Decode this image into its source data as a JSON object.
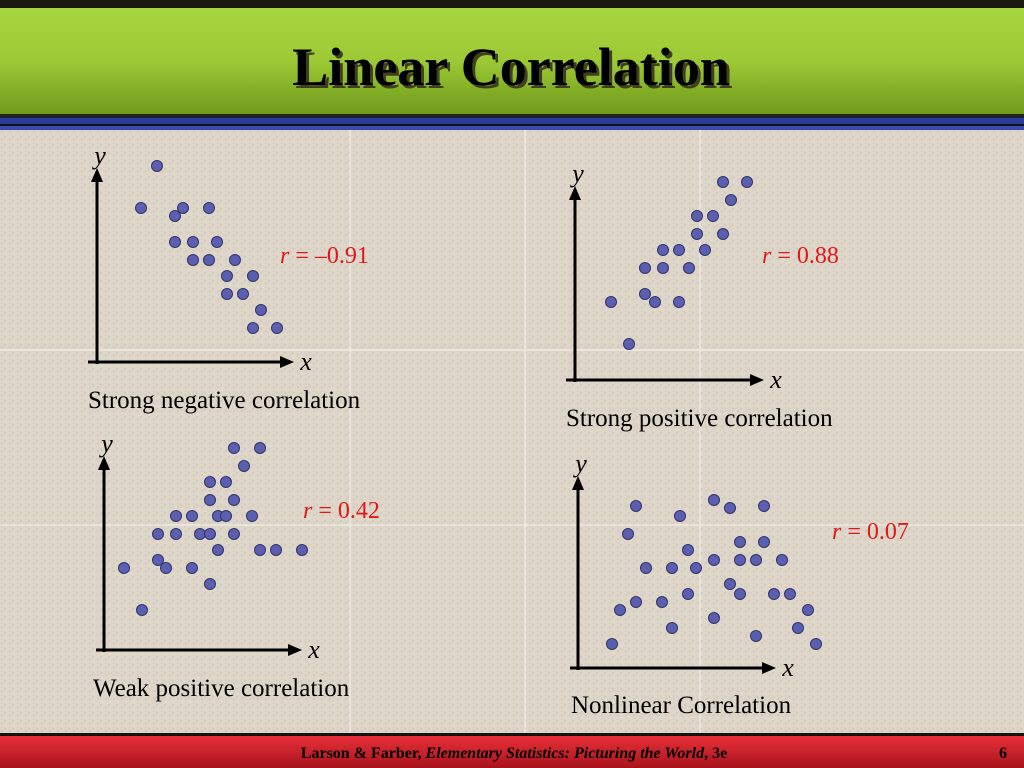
{
  "slide": {
    "title": "Linear Correlation",
    "footer": {
      "authors": "Larson & Farber, ",
      "book": "Elementary Statistics: Picturing the World",
      "edition": ", 3e",
      "page": "6"
    }
  },
  "chart_data": [
    {
      "type": "scatter",
      "caption": "Strong negative correlation",
      "x_label": "x",
      "y_label": "y",
      "annotation": {
        "symbol": "r",
        "text": " = –0.91"
      },
      "color": "#5b5fb0",
      "xlim": [
        0,
        12
      ],
      "ylim": [
        0,
        11
      ],
      "x": [
        3.0,
        2.2,
        3.9,
        4.3,
        5.6,
        3.9,
        4.8,
        6.0,
        4.8,
        5.6,
        6.9,
        6.5,
        7.8,
        6.5,
        7.3,
        8.2,
        7.8,
        9.0
      ],
      "values": [
        9.8,
        7.7,
        7.3,
        7.7,
        7.7,
        6.0,
        6.0,
        6.0,
        5.1,
        5.1,
        5.1,
        4.3,
        4.3,
        3.4,
        3.4,
        2.6,
        1.7,
        1.7
      ]
    },
    {
      "type": "scatter",
      "caption": "Strong positive correlation",
      "x_label": "x",
      "y_label": "y",
      "annotation": {
        "symbol": "r",
        "text": " = 0.88"
      },
      "color": "#5b5fb0",
      "xlim": [
        0,
        12
      ],
      "ylim": [
        0,
        11
      ],
      "x": [
        7.4,
        8.6,
        7.8,
        6.1,
        6.9,
        6.1,
        7.4,
        4.4,
        5.2,
        6.5,
        3.5,
        4.4,
        5.7,
        3.5,
        1.8,
        4.0,
        5.2,
        2.7
      ],
      "values": [
        9.9,
        9.9,
        9.0,
        8.2,
        8.2,
        7.3,
        7.3,
        6.5,
        6.5,
        6.5,
        5.6,
        5.6,
        5.6,
        4.3,
        3.9,
        3.9,
        3.9,
        1.8
      ]
    },
    {
      "type": "scatter",
      "caption": "Weak positive correlation",
      "x_label": "x",
      "y_label": "y",
      "annotation": {
        "symbol": "r",
        "text": " = 0.42"
      },
      "color": "#5b5fb0",
      "xlim": [
        0,
        12
      ],
      "ylim": [
        0,
        11
      ],
      "x": [
        6.5,
        7.8,
        7.0,
        5.3,
        6.1,
        5.3,
        6.5,
        3.6,
        4.4,
        5.7,
        6.1,
        7.4,
        2.7,
        3.6,
        4.8,
        5.3,
        6.5,
        5.7,
        7.8,
        8.6,
        9.9,
        1.0,
        2.7,
        3.1,
        4.4,
        5.3,
        1.9
      ],
      "values": [
        10.1,
        10.1,
        9.2,
        8.4,
        8.4,
        7.5,
        7.5,
        6.7,
        6.7,
        6.7,
        6.7,
        6.7,
        5.8,
        5.8,
        5.8,
        5.8,
        5.8,
        5.0,
        5.0,
        5.0,
        5.0,
        4.1,
        4.5,
        4.1,
        4.1,
        3.3,
        2.0
      ]
    },
    {
      "type": "scatter",
      "caption": "Nonlinear Correlation",
      "x_label": "x",
      "y_label": "y",
      "annotation": {
        "symbol": "r",
        "text": " = 0.07"
      },
      "color": "#5b5fb0",
      "xlim": [
        0,
        12
      ],
      "ylim": [
        0,
        11
      ],
      "x": [
        2.9,
        5.1,
        6.8,
        7.6,
        9.3,
        2.5,
        8.1,
        9.3,
        5.5,
        6.8,
        8.1,
        8.9,
        10.2,
        3.4,
        4.7,
        5.9,
        7.6,
        8.1,
        9.8,
        10.6,
        5.5,
        2.9,
        4.2,
        2.1,
        11.5,
        6.8,
        4.7,
        11.0,
        8.9,
        1.7,
        11.9
      ],
      "values": [
        8.1,
        7.6,
        8.4,
        8.0,
        8.1,
        6.7,
        6.3,
        6.3,
        5.9,
        5.4,
        5.4,
        5.4,
        5.4,
        5.0,
        5.0,
        5.0,
        4.2,
        3.7,
        3.7,
        3.7,
        3.7,
        3.3,
        3.3,
        2.9,
        2.9,
        2.5,
        2.0,
        2.0,
        1.6,
        1.2,
        1.2
      ]
    }
  ]
}
